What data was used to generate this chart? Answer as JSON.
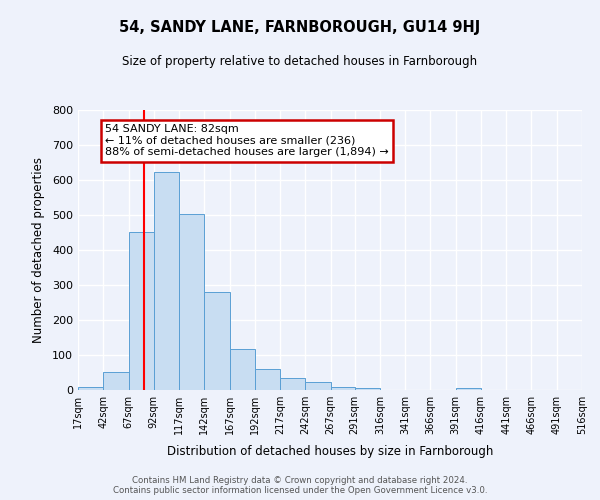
{
  "title": "54, SANDY LANE, FARNBOROUGH, GU14 9HJ",
  "subtitle": "Size of property relative to detached houses in Farnborough",
  "xlabel": "Distribution of detached houses by size in Farnborough",
  "ylabel": "Number of detached properties",
  "bar_color": "#c8ddf2",
  "bar_edge_color": "#5a9fd4",
  "bin_edges": [
    17,
    42,
    67,
    92,
    117,
    142,
    167,
    192,
    217,
    242,
    267,
    291,
    316,
    341,
    366,
    391,
    416,
    441,
    466,
    491,
    516
  ],
  "bar_heights": [
    10,
    52,
    450,
    622,
    503,
    280,
    118,
    60,
    35,
    22,
    8,
    7,
    0,
    0,
    0,
    5,
    0,
    0,
    0,
    0
  ],
  "tick_labels": [
    "17sqm",
    "42sqm",
    "67sqm",
    "92sqm",
    "117sqm",
    "142sqm",
    "167sqm",
    "192sqm",
    "217sqm",
    "242sqm",
    "267sqm",
    "291sqm",
    "316sqm",
    "341sqm",
    "366sqm",
    "391sqm",
    "416sqm",
    "441sqm",
    "466sqm",
    "491sqm",
    "516sqm"
  ],
  "property_line_x": 82,
  "annotation_line1": "54 SANDY LANE: 82sqm",
  "annotation_line2": "← 11% of detached houses are smaller (236)",
  "annotation_line3": "88% of semi-detached houses are larger (1,894) →",
  "annotation_box_color": "#ffffff",
  "annotation_box_edge_color": "#cc0000",
  "ylim": [
    0,
    800
  ],
  "yticks": [
    0,
    100,
    200,
    300,
    400,
    500,
    600,
    700,
    800
  ],
  "footer_line1": "Contains HM Land Registry data © Crown copyright and database right 2024.",
  "footer_line2": "Contains public sector information licensed under the Open Government Licence v3.0.",
  "background_color": "#eef2fb",
  "grid_color": "#ffffff"
}
